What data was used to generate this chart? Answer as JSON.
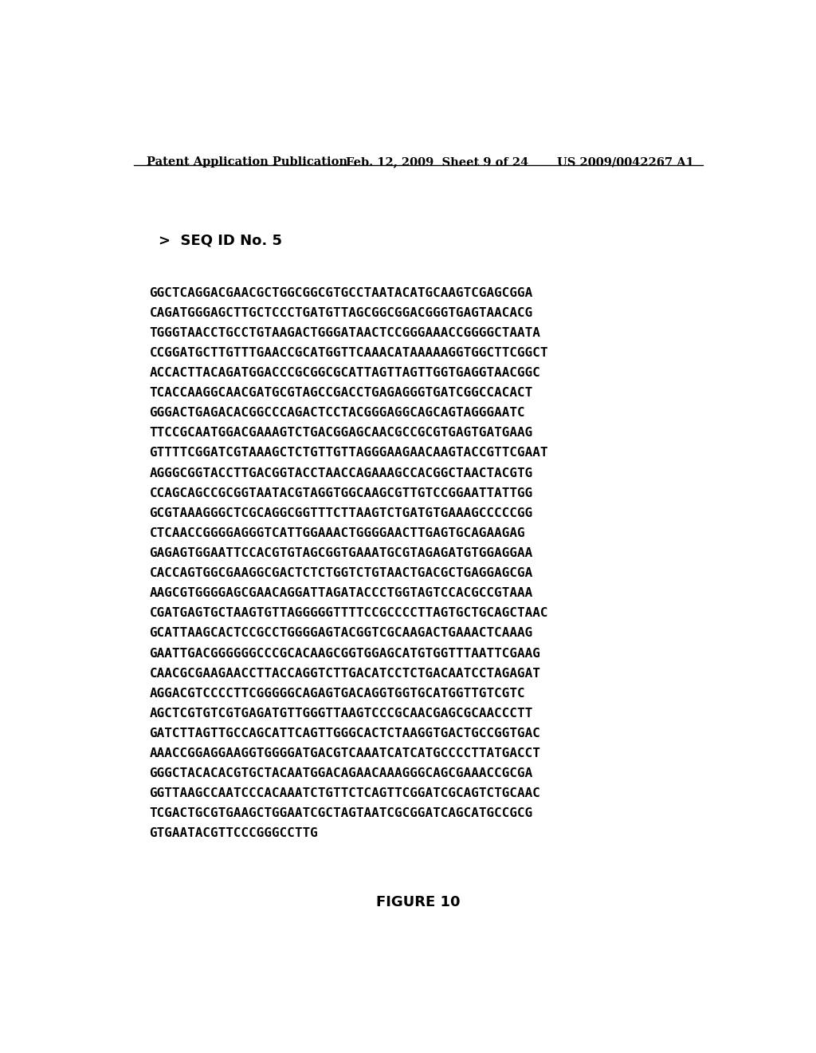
{
  "header_left": "Patent Application Publication",
  "header_middle": "Feb. 12, 2009  Sheet 9 of 24",
  "header_right": "US 2009/0042267 A1",
  "seq_label": ">  SEQ ID No. 5",
  "sequence_lines": [
    "GGCTCAGGACGAACGCTGGCGGCGTGCCTAATACATGCAAGTCGAGCGGA",
    "CAGATGGGAGCTTGCTCCCTGATGTTAGCGGCGGACGGGTGAGTAACACG",
    "TGGGTAACCTGCCTGTAAGACTGGGATAACTCCGGGAAACCGGGGCTAATA",
    "CCGGATGCTTGTTTGAACCGCATGGTTCAAACATAAAAAGGTGGCTTCGGCT",
    "ACCACTTACAGATGGACCCGCGGCGCATTAGTTAGTTGGTGAGGTAACGGC",
    "TCACCAAGGCAACGATGCGTAGCCGACCTGAGAGGGTGATCGGCCACACT",
    "GGGACTGAGACACGGCCCAGACTCCTACGGGAGGCAGCAGTAGGGAATC",
    "TTCCGCAATGGACGAAAGTCTGACGGAGCAACGCCGCGTGAGTGATGAAG",
    "GTTTTCGGATCGTAAAGCTCTGTTGTTAGGGAAGAACAAGTACCGTTCGAAT",
    "AGGGCGGTACCTTGACGGTACCTAACCAGAAAGCCACGGCTAACTACGTG",
    "CCAGCAGCCGCGGTAATACGTAGGTGGCAAGCGTTGTCCGGAATTATTGG",
    "GCGTAAAGGGCTCGCAGGCGGTTTCTTAAGTCTGATGTGAAAGCCCCCGG",
    "CTCAACCGGGGAGGGTCATTGGAAACTGGGGAACTTGAGTGCAGAAGAG",
    "GAGAGTGGAATTCCACGTGTAGCGGTGAAATGCGTAGAGATGTGGAGGAA",
    "CACCAGTGGCGAAGGCGACTCTCTGGTCTGTAACTGACGCTGAGGAGCGA",
    "AAGCGTGGGGAGCGAACAGGATTAGATACCCTGGTAGTCCACGCCGTAAA",
    "CGATGAGTGCTAAGTGTTAGGGGGTTTTCCGCCCCTTAGTGCTGCAGCTAAC",
    "GCATTAAGCACTCCGCCTGGGGAGTACGGTCGCAAGACTGAAACTCAAAG",
    "GAATTGACGGGGGGCCCGCACAAGCGGTGGAGCATGTGGTTTAATTCGAAG",
    "CAACGCGAAGAACCTTACCAGGTCTTGACATCCTCTGACAATCCTAGAGAT",
    "AGGACGTCCCCTTCGGGGGCAGAGTGACAGGTGGTGCATGGTTGTCGTC",
    "AGCTCGTGTCGTGAGATGTTGGGTTAAGTCCCGCAACGAGCGCAACCCTT",
    "GATCTTAGTTGCCAGCATTCAGTTGGGCACTCTAAGGTGACTGCCGGTGAC",
    "AAACCGGAGGAAGGTGGGGATGACGTCAAATCATCATGCCCCTTATGACCT",
    "GGGCTACACACGTGCTACAATGGACAGAACAAAGGGCAGCGAAACCGCGA",
    "GGTTAAGCCAATCCCACAAATCTGTTCTCAGTTCGGATCGCAGTCTGCAAC",
    "TCGACTGCGTGAAGCTGGAATCGCTAGTAATCGCGGATCAGCATGCCGCG",
    "GTGAATACGTTCCCGGGCCTTG"
  ],
  "figure_label": "FIGURE 10",
  "background_color": "#ffffff",
  "text_color": "#000000",
  "header_fontsize": 10.5,
  "seq_label_fontsize": 13,
  "sequence_fontsize": 11.5,
  "figure_label_fontsize": 13
}
